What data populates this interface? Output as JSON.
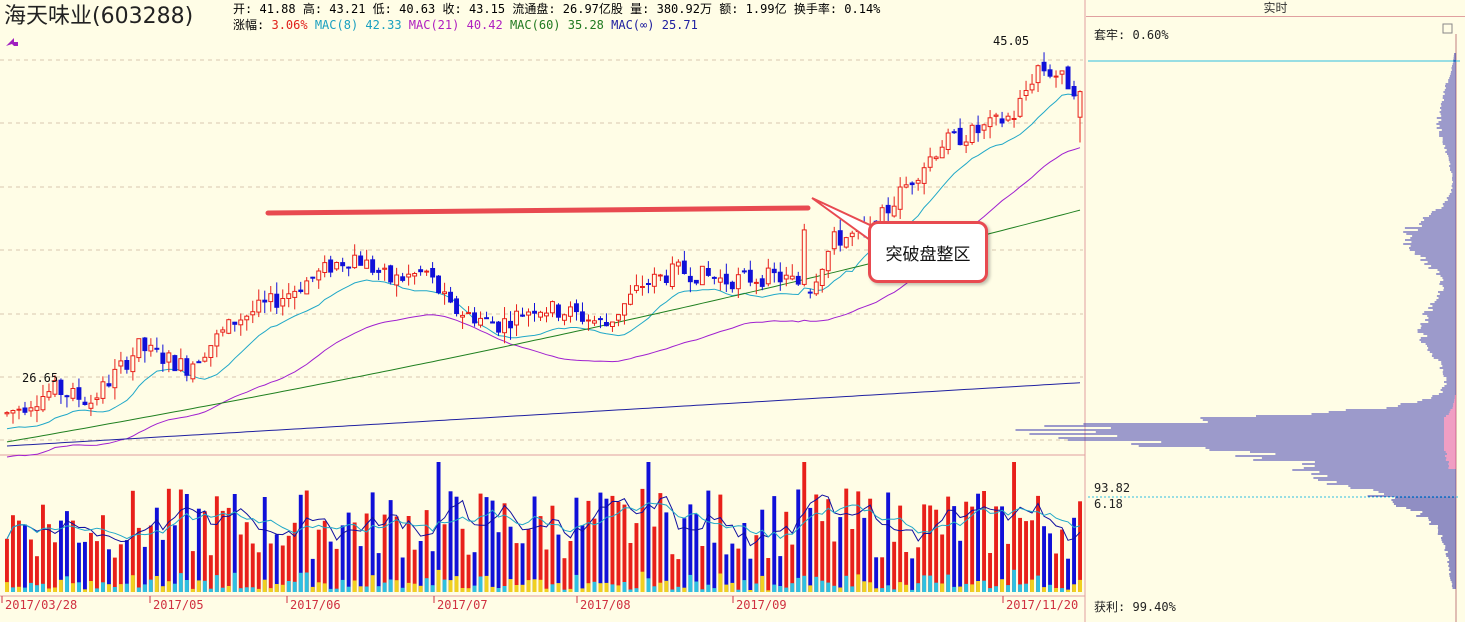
{
  "header": {
    "title": "海天味业(603288)",
    "open_label": "开:",
    "open": "41.88",
    "high_label": "高:",
    "high": "43.21",
    "low_label": "低:",
    "low": "40.63",
    "close_label": "收:",
    "close": "43.15",
    "float_label": "流通盘:",
    "float": "26.97亿股",
    "volume_label": "量:",
    "volume": "380.92万",
    "amount_label": "额:",
    "amount": "1.99亿",
    "turnover_label": "换手率:",
    "turnover": "0.14%",
    "change_label": "涨幅:",
    "change": "3.06%",
    "mac8_label": "MAC(8)",
    "mac8": "42.33",
    "mac21_label": "MAC(21)",
    "mac21": "40.42",
    "mac60_label": "MAC(60)",
    "mac60": "35.28",
    "macinf_label": "MAC(∞)",
    "macinf": "25.71"
  },
  "right_panel": {
    "tab": "实时",
    "trapped_label": "套牢:",
    "trapped": "0.60%",
    "cost_top": "93.82",
    "cost_bottom": "6.18",
    "profit_label": "获利:",
    "profit": "99.40%"
  },
  "annotation": {
    "callout": "突破盘整区"
  },
  "colors": {
    "up": "#e8201a",
    "down": "#1010d8",
    "ma8": "#20a8c8",
    "ma21": "#a020d0",
    "ma60": "#208020",
    "mainf": "#2020a0",
    "trendline": "#e84a50",
    "background": "#fffde6"
  },
  "chart_data": {
    "type": "candlestick",
    "period": "weekly-ish daily",
    "x_start": "2017/03/28",
    "x_end": "2017/11/20",
    "date_ticks": [
      "2017/03/28",
      "2017/05",
      "2017/06",
      "2017/07",
      "2017/08",
      "2017/09",
      "2017/11/20"
    ],
    "ylim": [
      25.5,
      46.2
    ],
    "low_marker": "26.65",
    "high_marker": "45.05",
    "waypoints": [
      {
        "i": 0,
        "p": 27.2
      },
      {
        "i": 8,
        "p": 28.4
      },
      {
        "i": 14,
        "p": 27.8
      },
      {
        "i": 22,
        "p": 30.5
      },
      {
        "i": 30,
        "p": 29.5
      },
      {
        "i": 38,
        "p": 31.8
      },
      {
        "i": 46,
        "p": 33.0
      },
      {
        "i": 54,
        "p": 34.5
      },
      {
        "i": 58,
        "p": 35.0
      },
      {
        "i": 64,
        "p": 33.8
      },
      {
        "i": 70,
        "p": 34.2
      },
      {
        "i": 74,
        "p": 32.4
      },
      {
        "i": 82,
        "p": 31.6
      },
      {
        "i": 88,
        "p": 32.5
      },
      {
        "i": 94,
        "p": 32.2
      },
      {
        "i": 100,
        "p": 31.6
      },
      {
        "i": 106,
        "p": 33.6
      },
      {
        "i": 112,
        "p": 34.3
      },
      {
        "i": 120,
        "p": 33.8
      },
      {
        "i": 128,
        "p": 34.0
      },
      {
        "i": 134,
        "p": 33.5
      },
      {
        "i": 138,
        "p": 35.8
      },
      {
        "i": 144,
        "p": 36.2
      },
      {
        "i": 150,
        "p": 38.5
      },
      {
        "i": 156,
        "p": 40.6
      },
      {
        "i": 162,
        "p": 41.2
      },
      {
        "i": 168,
        "p": 42.0
      },
      {
        "i": 172,
        "p": 44.4
      },
      {
        "i": 175,
        "p": 44.0
      },
      {
        "i": 179,
        "p": 43.15
      }
    ]
  }
}
